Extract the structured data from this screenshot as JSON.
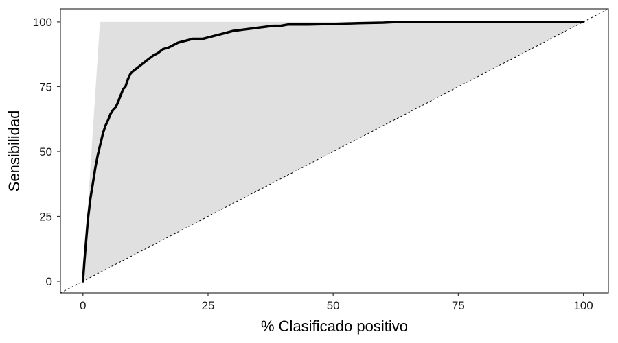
{
  "chart_data": {
    "type": "line",
    "title": "",
    "xlabel": "% Clasificado positivo",
    "ylabel": "Sensibilidad",
    "xlim": [
      -4.5,
      105
    ],
    "ylim": [
      -4.5,
      105
    ],
    "xticks": [
      0,
      25,
      50,
      75,
      100
    ],
    "yticks": [
      0,
      25,
      50,
      75,
      100
    ],
    "grid": false,
    "legend": "none",
    "colors": {
      "curve": "#000000",
      "ideal_area": "#e0e0e0",
      "diagonal": "#000000",
      "frame": "#333333",
      "background": "#ffffff"
    },
    "series": [
      {
        "role": "model_curve",
        "x": [
          0,
          0.3,
          0.6,
          1.0,
          1.5,
          2.0,
          2.5,
          3.0,
          3.5,
          4.0,
          4.5,
          5.0,
          5.5,
          6.0,
          6.5,
          7.0,
          7.5,
          8.0,
          8.5,
          9.0,
          9.5,
          10.0,
          11.0,
          12.0,
          13.0,
          14.0,
          15.0,
          16.0,
          17.0,
          18.0,
          19.0,
          20.0,
          21.0,
          22.0,
          23.0,
          24.0,
          25.0,
          26.0,
          27.0,
          28.0,
          29.0,
          30.0,
          32.0,
          34.0,
          36.0,
          38.0,
          39.5,
          41.0,
          45.0,
          50.0,
          55.0,
          60.0,
          63.0,
          66.0,
          70.0,
          75.0,
          80.0,
          90.0,
          100.0
        ],
        "y": [
          0,
          8,
          15,
          24,
          32,
          38,
          44,
          49,
          53,
          57,
          60,
          62,
          64.5,
          66,
          67,
          69,
          71.5,
          74,
          75,
          78,
          80,
          81,
          82.5,
          84,
          85.5,
          87,
          88,
          89.5,
          90,
          91,
          92,
          92.5,
          93,
          93.5,
          93.5,
          93.5,
          94,
          94.5,
          95,
          95.5,
          96,
          96.5,
          97,
          97.5,
          98,
          98.5,
          98.5,
          99,
          99,
          99.2,
          99.5,
          99.7,
          100,
          100,
          100,
          100,
          100,
          100,
          100
        ]
      },
      {
        "role": "ideal_model_area",
        "x": [
          0,
          3.4,
          100
        ],
        "y": [
          0,
          100,
          100
        ]
      },
      {
        "role": "random_diagonal",
        "x": [
          -4.5,
          105
        ],
        "y": [
          -4.5,
          105
        ]
      }
    ]
  }
}
